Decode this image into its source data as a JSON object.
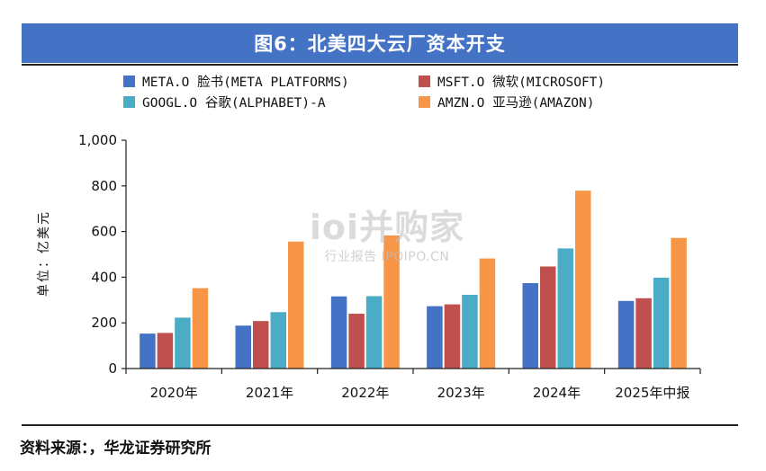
{
  "title": "图6：北美四大云厂资本开支",
  "source": "资料来源：，华龙证券研究所",
  "watermark": {
    "main": "ioi并购家",
    "sub": "行业报告 IPOIPO.CN"
  },
  "chart_data": {
    "type": "bar",
    "title": "图6：北美四大云厂资本开支",
    "ylabel": "单位：亿美元",
    "xlabel": "",
    "ylim": [
      0,
      1000
    ],
    "yticks": [
      0,
      200,
      400,
      600,
      800,
      1000
    ],
    "ytick_labels": [
      "0",
      "200",
      "400",
      "600",
      "800",
      "1,000"
    ],
    "categories": [
      "2020年",
      "2021年",
      "2022年",
      "2023年",
      "2024年",
      "2025年中报"
    ],
    "grid": false,
    "legend_position": "top",
    "series": [
      {
        "name": "META.O 脸书(META PLATFORMS)",
        "color": "#4472c4",
        "values": [
          153,
          188,
          316,
          273,
          374,
          296
        ]
      },
      {
        "name": "MSFT.O 微软(MICROSOFT)",
        "color": "#c0504d",
        "values": [
          156,
          208,
          240,
          281,
          447,
          308
        ]
      },
      {
        "name": "GOOGL.O 谷歌(ALPHABET)-A",
        "color": "#4bacc6",
        "values": [
          223,
          247,
          317,
          323,
          526,
          398
        ]
      },
      {
        "name": "AMZN.O 亚马逊(AMAZON)",
        "color": "#f79646",
        "values": [
          352,
          556,
          583,
          482,
          779,
          572
        ]
      }
    ]
  }
}
